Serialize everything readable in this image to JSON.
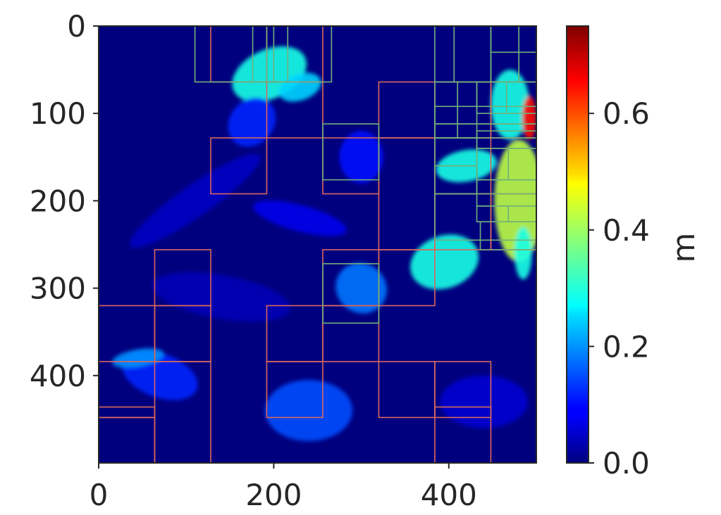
{
  "chart_data": {
    "type": "heatmap",
    "title": "",
    "xlabel": "",
    "ylabel": "",
    "xlim": [
      0,
      500
    ],
    "ylim": [
      500,
      0
    ],
    "x_ticks": [
      0,
      200,
      400
    ],
    "y_ticks": [
      0,
      100,
      200,
      300,
      400
    ],
    "x_tick_labels": [
      "0",
      "200",
      "400"
    ],
    "y_tick_labels": [
      "0",
      "100",
      "200",
      "300",
      "400"
    ],
    "colormap": "jet",
    "colorbar": {
      "label": "m",
      "range": [
        0.0,
        0.75
      ],
      "ticks": [
        0.0,
        0.2,
        0.4,
        0.6
      ],
      "tick_labels": [
        "0.0",
        "0.2",
        "0.4",
        "0.6"
      ]
    },
    "background_value": 0.0,
    "blobs": [
      {
        "x": 195,
        "y": 55,
        "rx": 45,
        "ry": 28,
        "value": 0.3,
        "angle": -25
      },
      {
        "x": 230,
        "y": 70,
        "rx": 25,
        "ry": 15,
        "value": 0.25,
        "angle": -20
      },
      {
        "x": 175,
        "y": 110,
        "rx": 25,
        "ry": 30,
        "value": 0.12,
        "angle": 40
      },
      {
        "x": 470,
        "y": 90,
        "rx": 22,
        "ry": 40,
        "value": 0.3,
        "angle": 0
      },
      {
        "x": 492,
        "y": 105,
        "rx": 8,
        "ry": 25,
        "value": 0.65,
        "angle": 0
      },
      {
        "x": 420,
        "y": 160,
        "rx": 35,
        "ry": 18,
        "value": 0.3,
        "angle": -10
      },
      {
        "x": 480,
        "y": 200,
        "rx": 28,
        "ry": 70,
        "value": 0.42,
        "angle": 0
      },
      {
        "x": 485,
        "y": 260,
        "rx": 10,
        "ry": 30,
        "value": 0.3,
        "angle": 0
      },
      {
        "x": 395,
        "y": 270,
        "rx": 40,
        "ry": 30,
        "value": 0.3,
        "angle": -20
      },
      {
        "x": 300,
        "y": 300,
        "rx": 30,
        "ry": 28,
        "value": 0.18,
        "angle": 40
      },
      {
        "x": 240,
        "y": 440,
        "rx": 50,
        "ry": 35,
        "value": 0.15,
        "angle": 0
      },
      {
        "x": 70,
        "y": 400,
        "rx": 45,
        "ry": 25,
        "value": 0.12,
        "angle": 20
      },
      {
        "x": 45,
        "y": 380,
        "rx": 30,
        "ry": 10,
        "value": 0.2,
        "angle": -10
      },
      {
        "x": 230,
        "y": 220,
        "rx": 55,
        "ry": 15,
        "value": 0.08,
        "angle": 15
      },
      {
        "x": 110,
        "y": 200,
        "rx": 90,
        "ry": 18,
        "value": 0.05,
        "angle": -35
      },
      {
        "x": 440,
        "y": 430,
        "rx": 50,
        "ry": 30,
        "value": 0.06,
        "angle": 0
      },
      {
        "x": 140,
        "y": 310,
        "rx": 80,
        "ry": 25,
        "value": 0.04,
        "angle": 10
      },
      {
        "x": 300,
        "y": 150,
        "rx": 25,
        "ry": 30,
        "value": 0.1,
        "angle": 0
      }
    ],
    "boxes_red": [
      [
        128,
        128,
        192,
        192
      ],
      [
        192,
        64,
        256,
        128
      ],
      [
        256,
        128,
        320,
        192
      ],
      [
        320,
        64,
        384,
        128
      ],
      [
        384,
        64,
        448,
        128
      ],
      [
        448,
        64,
        512,
        128
      ],
      [
        384,
        128,
        448,
        192
      ],
      [
        448,
        192,
        512,
        256
      ],
      [
        384,
        192,
        448,
        256
      ],
      [
        320,
        256,
        384,
        320
      ],
      [
        256,
        256,
        320,
        320
      ],
      [
        320,
        128,
        384,
        256
      ],
      [
        256,
        320,
        320,
        384
      ],
      [
        64,
        256,
        128,
        320
      ],
      [
        0,
        320,
        64,
        384
      ],
      [
        64,
        320,
        128,
        384
      ],
      [
        192,
        320,
        256,
        384
      ],
      [
        192,
        384,
        256,
        448
      ],
      [
        320,
        384,
        384,
        448
      ],
      [
        384,
        384,
        448,
        448
      ],
      [
        0,
        436,
        64,
        448
      ],
      [
        0,
        448,
        64,
        500
      ],
      [
        64,
        384,
        128,
        500
      ],
      [
        384,
        436,
        448,
        500
      ],
      [
        192,
        0,
        256,
        64
      ],
      [
        128,
        0,
        192,
        64
      ]
    ],
    "boxes_green": [
      [
        110,
        0,
        192,
        64
      ],
      [
        176,
        0,
        216,
        64
      ],
      [
        200,
        0,
        266,
        64
      ],
      [
        384,
        0,
        448,
        64
      ],
      [
        406,
        0,
        448,
        64
      ],
      [
        448,
        0,
        480,
        64
      ],
      [
        448,
        30,
        500,
        64
      ],
      [
        384,
        64,
        410,
        128
      ],
      [
        410,
        64,
        432,
        128
      ],
      [
        432,
        64,
        466,
        100
      ],
      [
        466,
        64,
        500,
        100
      ],
      [
        384,
        92,
        500,
        112
      ],
      [
        384,
        112,
        500,
        128
      ],
      [
        432,
        120,
        500,
        140
      ],
      [
        384,
        128,
        432,
        160
      ],
      [
        432,
        140,
        468,
        176
      ],
      [
        468,
        140,
        500,
        176
      ],
      [
        384,
        160,
        432,
        192
      ],
      [
        432,
        176,
        500,
        206
      ],
      [
        432,
        206,
        468,
        224
      ],
      [
        468,
        206,
        500,
        224
      ],
      [
        384,
        192,
        500,
        245
      ],
      [
        436,
        224,
        500,
        256
      ],
      [
        256,
        112,
        320,
        176
      ],
      [
        256,
        272,
        320,
        340
      ]
    ]
  }
}
